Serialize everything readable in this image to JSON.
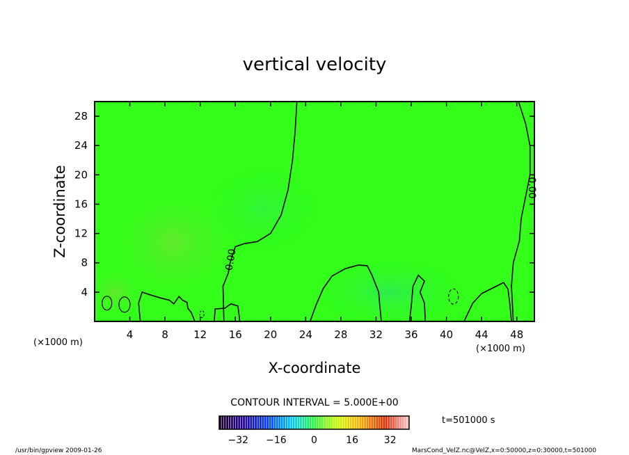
{
  "chart_data": {
    "type": "heatmap",
    "title": "vertical velocity",
    "xlabel": "X-coordinate",
    "ylabel": "Z-coordinate",
    "x_unit": "(×1000 m)",
    "y_unit": "(×1000 m)",
    "xlim": [
      0,
      50
    ],
    "ylim": [
      0,
      30
    ],
    "x_ticks": [
      4,
      8,
      12,
      16,
      20,
      24,
      28,
      32,
      36,
      40,
      44,
      48
    ],
    "y_ticks": [
      4,
      8,
      12,
      16,
      20,
      24,
      28
    ],
    "contour_interval_text": "CONTOUR INTERVAL = 5.000E+00",
    "contour_label": "0.00",
    "time_label": "t=501000 s",
    "colorbar": {
      "min": -40,
      "max": 40,
      "ticks": [
        "−32",
        "−16",
        "0",
        "16",
        "32"
      ],
      "tick_values": [
        -32,
        -16,
        0,
        16,
        32
      ]
    },
    "zero_contour_main": [
      [
        14.7,
        0
      ],
      [
        14.6,
        4.8
      ],
      [
        15.2,
        6.6
      ],
      [
        15.4,
        8.0
      ],
      [
        16.0,
        10.2
      ],
      [
        17.0,
        10.6
      ],
      [
        18.5,
        10.9
      ],
      [
        20.0,
        12.0
      ],
      [
        21.2,
        14.5
      ],
      [
        22.0,
        18.0
      ],
      [
        22.5,
        22.0
      ],
      [
        22.8,
        26.0
      ],
      [
        23.0,
        30
      ]
    ],
    "zero_contour_right": [
      [
        47.6,
        0
      ],
      [
        47.4,
        4.8
      ],
      [
        47.6,
        8.0
      ],
      [
        48.3,
        11.0
      ],
      [
        48.5,
        14.0
      ],
      [
        49.0,
        17.0
      ],
      [
        49.5,
        20.0
      ],
      [
        49.5,
        24.0
      ],
      [
        49.0,
        27.0
      ],
      [
        48.2,
        30
      ]
    ],
    "zero_contour_dome": [
      [
        24.5,
        0
      ],
      [
        25.2,
        2.3
      ],
      [
        26.0,
        4.5
      ],
      [
        27.0,
        6.2
      ],
      [
        28.5,
        7.2
      ],
      [
        30.0,
        7.7
      ],
      [
        31.0,
        7.6
      ],
      [
        31.5,
        6.4
      ],
      [
        32.3,
        4.0
      ],
      [
        32.4,
        2.5
      ],
      [
        32.6,
        0
      ]
    ],
    "zero_contour_left": [
      [
        5.2,
        0
      ],
      [
        5.0,
        2.5
      ],
      [
        5.4,
        4.0
      ],
      [
        6.4,
        3.6
      ],
      [
        7.5,
        3.2
      ],
      [
        8.5,
        2.9
      ],
      [
        9.0,
        2.4
      ],
      [
        9.6,
        3.4
      ],
      [
        10.0,
        2.9
      ],
      [
        10.5,
        2.6
      ],
      [
        10.6,
        1.8
      ],
      [
        11.0,
        1.2
      ],
      [
        11.4,
        0
      ]
    ],
    "zero_contour_mid": [
      [
        13.6,
        0
      ],
      [
        13.7,
        1.7
      ],
      [
        14.8,
        1.8
      ],
      [
        15.5,
        2.4
      ],
      [
        16.3,
        2.1
      ],
      [
        16.5,
        0
      ]
    ],
    "zero_contour_hump": [
      [
        35.8,
        0
      ],
      [
        36.0,
        2.0
      ],
      [
        36.2,
        4.8
      ],
      [
        36.8,
        6.3
      ],
      [
        37.5,
        5.5
      ],
      [
        37.0,
        4.0
      ],
      [
        37.5,
        2.5
      ],
      [
        37.6,
        0
      ]
    ],
    "zero_contour_right2": [
      [
        42.0,
        0
      ],
      [
        43.0,
        2.5
      ],
      [
        44.0,
        3.8
      ],
      [
        45.5,
        4.7
      ],
      [
        46.5,
        5.3
      ],
      [
        47.0,
        4.4
      ],
      [
        47.2,
        2.5
      ],
      [
        47.4,
        0
      ]
    ]
  },
  "footer": {
    "program": "/usr/bin/gpview   2009-01-26",
    "source": "MarsCond_VelZ.nc@VelZ,x=0:50000,z=0:30000,t=501000"
  },
  "colors": {
    "field_green": "#33ff1a",
    "field_warm": "#5fee2a",
    "field_cool": "#2ff04a",
    "contour": "#000000"
  }
}
